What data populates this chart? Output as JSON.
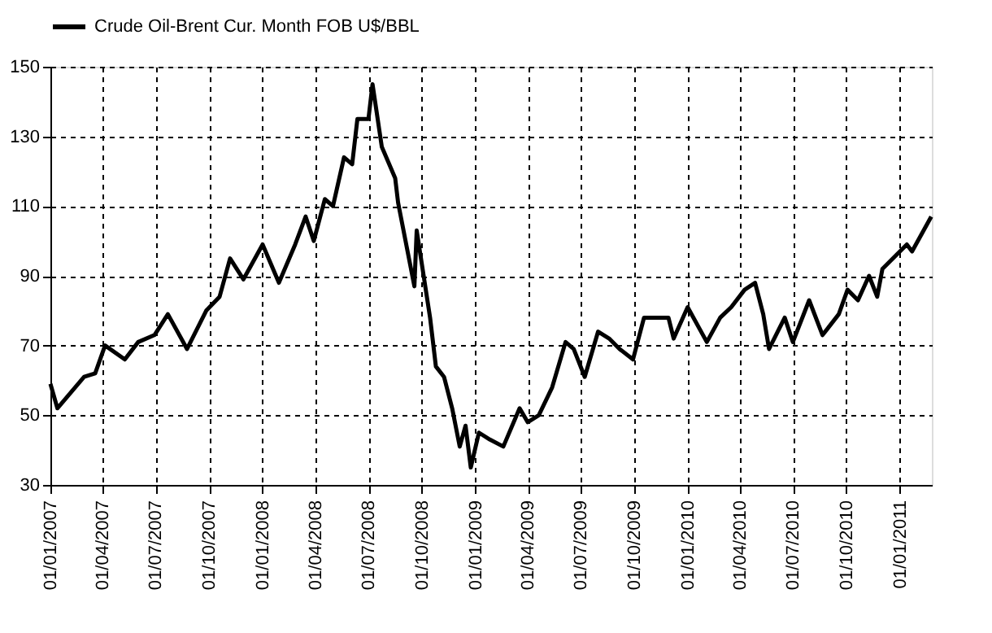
{
  "chart_data": {
    "type": "line",
    "x": [
      "2007-01-01",
      "2007-01-13",
      "2007-02-28",
      "2007-03-19",
      "2007-04-05",
      "2007-05-09",
      "2007-06-01",
      "2007-06-29",
      "2007-07-22",
      "2007-08-24",
      "2007-09-26",
      "2007-10-19",
      "2007-11-06",
      "2007-11-29",
      "2008-01-01",
      "2008-01-29",
      "2008-02-26",
      "2008-03-15",
      "2008-03-29",
      "2008-04-17",
      "2008-05-01",
      "2008-05-20",
      "2008-06-03",
      "2008-06-12",
      "2008-07-01",
      "2008-07-08",
      "2008-07-24",
      "2008-08-16",
      "2008-08-21",
      "2008-09-18",
      "2008-09-22",
      "2008-10-15",
      "2008-10-25",
      "2008-11-08",
      "2008-11-22",
      "2008-12-05",
      "2008-12-15",
      "2008-12-24",
      "2009-01-07",
      "2009-01-26",
      "2009-02-18",
      "2009-03-18",
      "2009-04-01",
      "2009-04-20",
      "2009-05-13",
      "2009-06-05",
      "2009-06-19",
      "2009-07-08",
      "2009-07-31",
      "2009-08-19",
      "2009-09-06",
      "2009-09-29",
      "2009-10-18",
      "2009-11-29",
      "2009-12-08",
      "2010-01-01",
      "2010-02-03",
      "2010-02-26",
      "2010-03-17",
      "2010-04-09",
      "2010-04-27",
      "2010-05-11",
      "2010-05-21",
      "2010-06-17",
      "2010-07-01",
      "2010-07-29",
      "2010-08-21",
      "2010-09-18",
      "2010-10-03",
      "2010-10-21",
      "2010-11-09",
      "2010-11-23",
      "2010-12-02",
      "2011-01-13",
      "2011-01-22",
      "2011-02-24"
    ],
    "series": [
      {
        "name": "Crude Oil-Brent Cur. Month FOB U$/BBL",
        "color": "#000000",
        "values": [
          59,
          52,
          61,
          62,
          70,
          66,
          71,
          73,
          79,
          69,
          80,
          84,
          95,
          89,
          99,
          88,
          99,
          107,
          100,
          112,
          110,
          124,
          122,
          135,
          135,
          145,
          127,
          118,
          111,
          87,
          103,
          78,
          64,
          61,
          52,
          41,
          47,
          35,
          45,
          43,
          41,
          52,
          48,
          50,
          58,
          71,
          69,
          61,
          74,
          72,
          69,
          66,
          78,
          78,
          72,
          81,
          71,
          78,
          81,
          86,
          88,
          79,
          69,
          78,
          71,
          83,
          73,
          79,
          86,
          83,
          90,
          84,
          92,
          99,
          97,
          107
        ]
      }
    ],
    "ylim": [
      30,
      150
    ],
    "yticks": [
      30,
      50,
      70,
      90,
      110,
      130,
      150
    ],
    "xlim": [
      "2007-01-01",
      "2011-02-25"
    ],
    "xticks": [
      {
        "value": "2007-01-01",
        "label": "01/01/2007"
      },
      {
        "value": "2007-04-01",
        "label": "01/04/2007"
      },
      {
        "value": "2007-07-01",
        "label": "01/07/2007"
      },
      {
        "value": "2007-10-01",
        "label": "01/10/2007"
      },
      {
        "value": "2008-01-01",
        "label": "01/01/2008"
      },
      {
        "value": "2008-04-01",
        "label": "01/04/2008"
      },
      {
        "value": "2008-07-01",
        "label": "01/07/2008"
      },
      {
        "value": "2008-10-01",
        "label": "01/10/2008"
      },
      {
        "value": "2009-01-01",
        "label": "01/01/2009"
      },
      {
        "value": "2009-04-01",
        "label": "01/04/2009"
      },
      {
        "value": "2009-07-01",
        "label": "01/07/2009"
      },
      {
        "value": "2009-10-01",
        "label": "01/10/2009"
      },
      {
        "value": "2010-01-01",
        "label": "01/01/2010"
      },
      {
        "value": "2010-04-01",
        "label": "01/04/2010"
      },
      {
        "value": "2010-07-01",
        "label": "01/07/2010"
      },
      {
        "value": "2010-10-01",
        "label": "01/10/2010"
      },
      {
        "value": "2011-01-01",
        "label": "01/01/2011"
      }
    ],
    "grid": true,
    "legend": "top",
    "line_style": "solid",
    "marker": "none"
  }
}
